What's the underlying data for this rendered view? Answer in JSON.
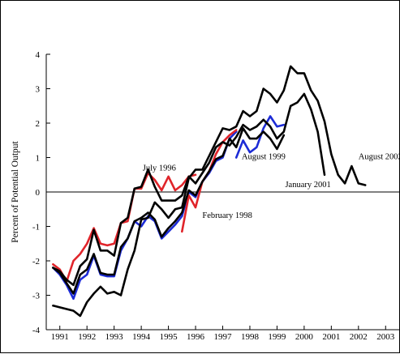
{
  "chart_data": {
    "type": "line",
    "title": "",
    "xlabel": "",
    "ylabel": "Percent of Potential Output",
    "xlim": [
      1990.5,
      2003.5
    ],
    "ylim": [
      -4,
      4
    ],
    "x_ticks": [
      "1991",
      "1992",
      "1993",
      "1994",
      "1995",
      "1996",
      "1997",
      "1998",
      "1999",
      "2000",
      "2001",
      "2002",
      "2003"
    ],
    "y_ticks": [
      "4",
      "3",
      "2",
      "1",
      "0",
      "-1",
      "-2",
      "-3",
      "-4"
    ],
    "grid": false,
    "zero_line": true,
    "series": [
      {
        "name": "July 1996",
        "color": "#e0242a",
        "x": [
          1990.75,
          1991.0,
          1991.25,
          1991.5,
          1991.75,
          1992.0,
          1992.25,
          1992.5,
          1992.75,
          1993.0,
          1993.25,
          1993.5,
          1993.75,
          1994.0,
          1994.25,
          1994.5,
          1994.75,
          1995.0,
          1995.25,
          1995.5,
          1995.75,
          1996.0
        ],
        "y": [
          -2.1,
          -2.25,
          -2.6,
          -2.0,
          -1.8,
          -1.5,
          -1.05,
          -1.5,
          -1.55,
          -1.5,
          -0.9,
          -0.85,
          0.1,
          0.1,
          0.55,
          0.35,
          0.05,
          0.45,
          0.05,
          0.2,
          0.45,
          0.5
        ]
      },
      {
        "name": "February 1998",
        "color": "#1c2bd6",
        "x": [
          1990.75,
          1991.0,
          1991.25,
          1991.5,
          1991.75,
          1992.0,
          1992.25,
          1992.5,
          1992.75,
          1993.0,
          1993.25,
          1993.5,
          1993.75,
          1994.0,
          1994.25,
          1994.5,
          1994.75,
          1995.0,
          1995.25,
          1995.5,
          1995.75,
          1996.0,
          1996.25,
          1996.5,
          1996.75,
          1997.0,
          1997.25,
          1997.5
        ],
        "y": [
          -2.2,
          -2.4,
          -2.7,
          -3.1,
          -2.55,
          -2.4,
          -1.85,
          -2.4,
          -2.45,
          -2.45,
          -1.7,
          -1.35,
          -0.85,
          -1.0,
          -0.7,
          -0.85,
          -1.35,
          -1.15,
          -0.95,
          -0.7,
          0.0,
          -0.15,
          0.3,
          0.55,
          0.9,
          1.0,
          1.55,
          1.75
        ]
      },
      {
        "name": "August 1999",
        "color": "#e0242a",
        "x": [
          1995.5,
          1995.75,
          1996.0,
          1996.25,
          1996.5,
          1996.75,
          1997.0,
          1997.25,
          1997.5
        ],
        "y": [
          -1.15,
          -0.1,
          -0.45,
          0.3,
          0.6,
          1.1,
          1.45,
          1.65,
          1.8
        ]
      },
      {
        "name": "August 1999",
        "color": "#1c2bd6",
        "x": [
          1997.5,
          1997.75,
          1998.0,
          1998.25,
          1998.5,
          1998.75,
          1999.0,
          1999.25
        ],
        "y": [
          1.0,
          1.5,
          1.15,
          1.3,
          1.85,
          2.2,
          1.9,
          1.95
        ]
      },
      {
        "name": "August 1999",
        "color": "#000000",
        "x": [
          1990.75,
          1991.0,
          1991.25,
          1991.5,
          1991.75,
          1992.0,
          1992.25,
          1992.5,
          1992.75,
          1993.0,
          1993.25,
          1993.5,
          1993.75,
          1994.0,
          1994.25,
          1994.5,
          1994.75,
          1995.0,
          1995.25,
          1995.5,
          1995.75,
          1996.0,
          1996.25,
          1996.5,
          1996.75,
          1997.0,
          1997.25,
          1997.5,
          1997.75,
          1998.0,
          1998.25,
          1998.5,
          1998.75,
          1999.0,
          1999.25
        ],
        "y": [
          -2.2,
          -2.35,
          -2.65,
          -2.95,
          -2.4,
          -2.25,
          -1.8,
          -2.35,
          -2.4,
          -2.4,
          -1.6,
          -1.35,
          -0.85,
          -0.75,
          -0.6,
          -0.8,
          -1.3,
          -1.05,
          -0.85,
          -0.6,
          0.05,
          -0.1,
          0.3,
          0.6,
          0.95,
          1.05,
          1.55,
          1.3,
          1.85,
          1.55,
          1.55,
          1.75,
          1.55,
          1.25,
          1.65
        ]
      },
      {
        "name": "January 2001",
        "color": "#000000",
        "x": [
          1990.75,
          1991.0,
          1991.25,
          1991.5,
          1991.75,
          1992.0,
          1992.25,
          1992.5,
          1992.75,
          1993.0,
          1993.25,
          1993.5,
          1993.75,
          1994.0,
          1994.25,
          1994.5,
          1994.75,
          1995.0,
          1995.25,
          1995.5,
          1995.75,
          1996.0,
          1996.25,
          1996.5,
          1996.75,
          1997.0,
          1997.25,
          1997.5,
          1997.75,
          1998.0,
          1998.25,
          1998.5,
          1998.75,
          1999.0,
          1999.25,
          1999.5,
          1999.75,
          2000.0,
          2000.25,
          2000.5,
          2000.75
        ],
        "y": [
          -2.2,
          -2.3,
          -2.55,
          -2.7,
          -2.15,
          -1.95,
          -1.1,
          -1.7,
          -1.7,
          -1.85,
          -0.9,
          -0.75,
          0.1,
          0.15,
          0.65,
          0.15,
          -0.25,
          -0.25,
          -0.25,
          -0.1,
          0.45,
          0.25,
          0.55,
          0.85,
          1.3,
          1.45,
          1.35,
          1.6,
          1.95,
          1.8,
          1.9,
          2.1,
          1.9,
          1.55,
          1.75,
          2.5,
          2.6,
          2.85,
          2.4,
          1.75,
          0.5
        ]
      },
      {
        "name": "August 2002",
        "color": "#000000",
        "x": [
          1990.75,
          1991.0,
          1991.25,
          1991.5,
          1991.75,
          1992.0,
          1992.25,
          1992.5,
          1992.75,
          1993.0,
          1993.25,
          1993.5,
          1993.75,
          1994.0,
          1994.25,
          1994.5,
          1994.75,
          1995.0,
          1995.25,
          1995.5,
          1995.75,
          1996.0,
          1996.25,
          1996.5,
          1996.75,
          1997.0,
          1997.25,
          1997.5,
          1997.75,
          1998.0,
          1998.25,
          1998.5,
          1998.75,
          1999.0,
          1999.25,
          1999.5,
          1999.75,
          2000.0,
          2000.25,
          2000.5,
          2000.75,
          2001.0,
          2001.25,
          2001.5,
          2001.75,
          2002.0,
          2002.25
        ],
        "y": [
          -3.3,
          -3.35,
          -3.4,
          -3.45,
          -3.6,
          -3.2,
          -2.95,
          -2.75,
          -2.95,
          -2.9,
          -3.0,
          -2.25,
          -1.7,
          -0.8,
          -0.75,
          -0.3,
          -0.5,
          -0.75,
          -0.5,
          -0.45,
          0.4,
          0.65,
          0.65,
          1.05,
          1.45,
          1.85,
          1.8,
          1.9,
          2.35,
          2.2,
          2.35,
          3.0,
          2.85,
          2.6,
          2.95,
          3.65,
          3.45,
          3.45,
          2.95,
          2.65,
          2.05,
          1.1,
          0.5,
          0.25,
          0.75,
          0.25,
          0.2
        ]
      }
    ],
    "annotations": [
      {
        "text": "July 1996",
        "x": 1994.05,
        "y": 0.62
      },
      {
        "text": "August 1999",
        "x": 1997.7,
        "y": 0.95
      },
      {
        "text": "January 2001",
        "x": 1999.3,
        "y": 0.14
      },
      {
        "text": "August 2002",
        "x": 2002.0,
        "y": 0.95
      },
      {
        "text": "February 1998",
        "x": 1996.25,
        "y": -0.75
      }
    ]
  }
}
